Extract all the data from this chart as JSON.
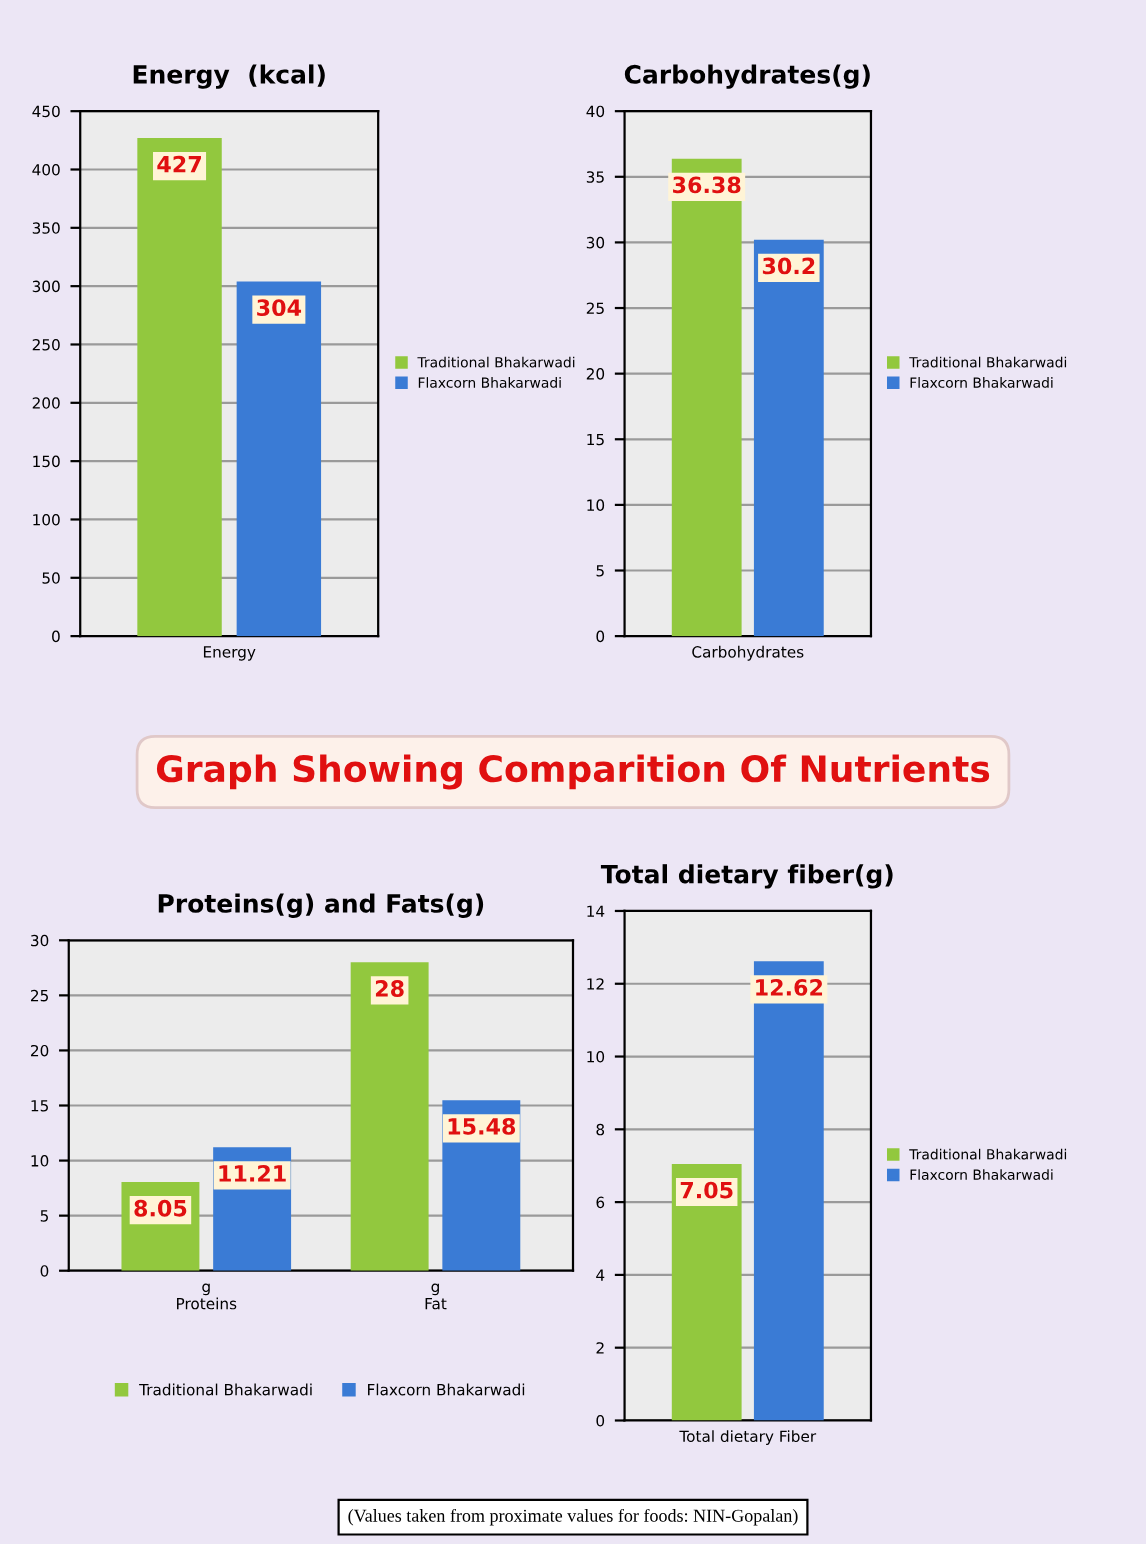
{
  "chart_data": [
    {
      "type": "bar",
      "title": "Energy  (kcal)",
      "categories": [
        "Energy"
      ],
      "series": [
        {
          "name": "Traditional Bhakarwadi",
          "color": "#92c83e",
          "values": [
            427
          ]
        },
        {
          "name": "Flaxcorn Bhakarwadi",
          "color": "#3a7bd5",
          "values": [
            304
          ]
        }
      ],
      "ylim": [
        0,
        450
      ],
      "yticks": [
        0,
        50,
        100,
        150,
        200,
        250,
        300,
        350,
        400,
        450
      ],
      "grid": "y",
      "legend": "right",
      "data_labels": true
    },
    {
      "type": "bar",
      "title": "Carbohydrates(g)",
      "categories": [
        "Carbohydrates"
      ],
      "series": [
        {
          "name": "Traditional Bhakarwadi",
          "color": "#92c83e",
          "values": [
            36.38
          ]
        },
        {
          "name": "Flaxcorn Bhakarwadi",
          "color": "#3a7bd5",
          "values": [
            30.2
          ]
        }
      ],
      "ylim": [
        0,
        40
      ],
      "yticks": [
        0,
        5,
        10,
        15,
        20,
        25,
        30,
        35,
        40
      ],
      "grid": "y",
      "legend": "right",
      "data_labels": true
    },
    {
      "type": "bar",
      "title": "Proteins(g) and Fats(g)",
      "categories": [
        "g\nProteins",
        "g\nFat"
      ],
      "series": [
        {
          "name": "Traditional Bhakarwadi",
          "color": "#92c83e",
          "values": [
            8.05,
            28
          ]
        },
        {
          "name": "Flaxcorn Bhakarwadi",
          "color": "#3a7bd5",
          "values": [
            11.21,
            15.48
          ]
        }
      ],
      "ylim": [
        0,
        30
      ],
      "yticks": [
        0,
        5,
        10,
        15,
        20,
        25,
        30
      ],
      "grid": "y",
      "legend": "bottom",
      "data_labels": true
    },
    {
      "type": "bar",
      "title": "Total dietary fiber(g)",
      "categories": [
        "Total dietary Fiber"
      ],
      "series": [
        {
          "name": "Traditional Bhakarwadi",
          "color": "#92c83e",
          "values": [
            7.05
          ]
        },
        {
          "name": "Flaxcorn Bhakarwadi",
          "color": "#3a7bd5",
          "values": [
            12.62
          ]
        }
      ],
      "ylim": [
        0,
        14
      ],
      "yticks": [
        0,
        2,
        4,
        6,
        8,
        10,
        12,
        14
      ],
      "grid": "y",
      "legend": "right",
      "data_labels": true
    },
    {
      "type": "other",
      "title": "Graph Showing Comparition Of Nutrients",
      "annotations": [
        "(Values taken from proximate values for foods: NIN-Gopalan)"
      ]
    }
  ]
}
